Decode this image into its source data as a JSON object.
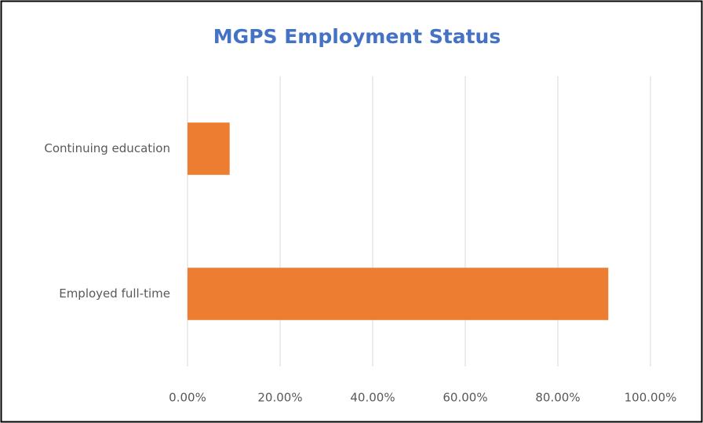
{
  "chart_data": {
    "type": "hbar",
    "title": "MGPS Employment Status",
    "categories": [
      "Continuing education",
      "Employed full-time"
    ],
    "values": [
      9.1,
      90.9
    ],
    "color": "#ed7d31",
    "xlim": [
      0,
      100
    ],
    "xticks": [
      {
        "value": 0,
        "label": "0.00%"
      },
      {
        "value": 20,
        "label": "20.00%"
      },
      {
        "value": 40,
        "label": "40.00%"
      },
      {
        "value": 60,
        "label": "60.00%"
      },
      {
        "value": 80,
        "label": "80.00%"
      },
      {
        "value": 100,
        "label": "100.00%"
      }
    ],
    "grid": true
  }
}
